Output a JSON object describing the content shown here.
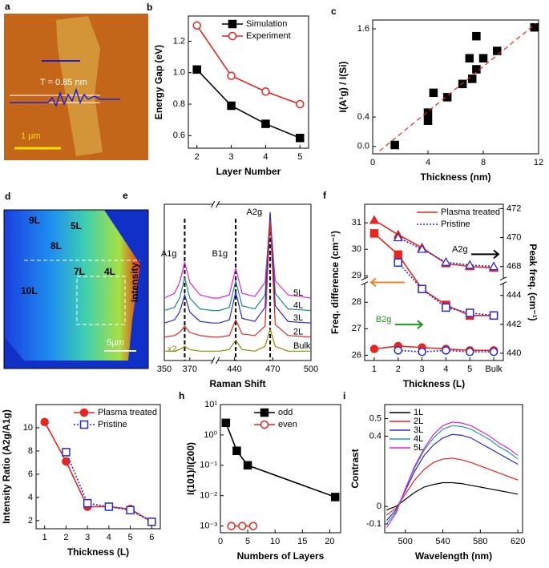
{
  "images": {
    "a": {
      "panel": "a",
      "labels": [
        "T = 0.85 nm",
        "1 μm"
      ]
    },
    "d": {
      "panel": "d",
      "labels": [
        "9L",
        "5L",
        "8L",
        "7L",
        "4L",
        "10L",
        "5μm"
      ]
    }
  },
  "chart_data": [
    {
      "panel": "b",
      "type": "line",
      "xlabel": "Layer Number",
      "ylabel": "Energy Gap (eV)",
      "xlim": [
        1.75,
        5.25
      ],
      "xticks": [
        2,
        3,
        4,
        5
      ],
      "ylim": [
        0.52,
        1.36
      ],
      "yticks": [
        0.6,
        0.8,
        {
          "value": 1,
          "label": "1.0"
        },
        1.2
      ],
      "legend": "upper right",
      "x": [
        2,
        3,
        4,
        5
      ],
      "series": [
        {
          "name": "Simulation",
          "color": "#000000",
          "marker": "square",
          "filled": true,
          "style": "solid",
          "values": [
            1.02,
            0.79,
            0.675,
            0.585
          ]
        },
        {
          "name": "Experiment",
          "color": "#e8251f",
          "marker": "circle",
          "filled": false,
          "style": "solid",
          "values": [
            1.3,
            0.98,
            0.88,
            0.8
          ]
        }
      ]
    },
    {
      "panel": "c",
      "type": "scatter",
      "xlabel": "Thickness (nm)",
      "ylabel": "I(A¹g) / I(Si)",
      "xlim": [
        0,
        12
      ],
      "xticks": [
        0,
        4,
        8,
        12
      ],
      "ylim": [
        -0.1,
        1.72
      ],
      "yticks": [
        {
          "value": 0,
          "label": "0.0"
        },
        0.4,
        1.6
      ],
      "series": [
        {
          "color": "#000000",
          "marker": "square",
          "filled": true,
          "style": "none",
          "x": [
            1.6,
            4,
            4,
            4.4,
            5.4,
            6.5,
            7,
            7.2,
            7.5,
            7.5,
            8,
            9,
            11.7
          ],
          "values": [
            0.02,
            0.35,
            0.46,
            0.73,
            0.67,
            0.85,
            1.2,
            0.92,
            1.5,
            1.05,
            1.2,
            1.3,
            1.62
          ]
        },
        {
          "color": "#e8251f",
          "marker": "none",
          "style": "dashed",
          "x": [
            0.5,
            11.8
          ],
          "values": [
            -0.06,
            1.67
          ]
        }
      ]
    },
    {
      "panel": "e",
      "type": "line",
      "xlabel": "Raman Shift",
      "ylabel": "Intensity",
      "xlim": [
        350,
        500
      ],
      "xbreak": [
        390,
        425
      ],
      "xticks": [
        350,
        370,
        440,
        470,
        500
      ],
      "ylim": [
        0,
        10
      ],
      "series_labels": "end",
      "x": [
        350,
        358,
        362,
        366,
        370,
        378,
        388,
        428,
        436,
        441,
        446,
        456,
        464,
        468,
        472,
        482,
        500
      ],
      "annotations": [
        {
          "x": 366,
          "label": "A1g"
        },
        {
          "x": 441,
          "label": "B1g"
        },
        {
          "x": 468,
          "label": "A2g"
        }
      ],
      "notes": [
        {
          "label": "x2",
          "color": "#8a8a00"
        }
      ],
      "series": [
        {
          "name": "5L",
          "color": "#e020e0",
          "marker": "none",
          "style": "solid",
          "values": [
            4.0,
            4.3,
            5.0,
            6.3,
            5.0,
            4.2,
            4.0,
            4.0,
            4.2,
            5.9,
            4.3,
            4.1,
            5.0,
            9.2,
            5.1,
            4.2,
            4.0
          ]
        },
        {
          "name": "4L",
          "color": "#1a8a7a",
          "marker": "none",
          "style": "solid",
          "values": [
            3.2,
            3.4,
            4.0,
            5.3,
            4.0,
            3.3,
            3.2,
            3.2,
            3.4,
            5.1,
            3.5,
            3.3,
            4.2,
            9.4,
            4.3,
            3.3,
            3.2
          ]
        },
        {
          "name": "3L",
          "color": "#2a2ac8",
          "marker": "none",
          "style": "solid",
          "values": [
            2.4,
            2.6,
            3.1,
            4.2,
            3.1,
            2.5,
            2.4,
            2.4,
            2.6,
            4.4,
            2.7,
            2.5,
            3.4,
            9.5,
            3.5,
            2.5,
            2.4
          ]
        },
        {
          "name": "2L",
          "color": "#e8251f",
          "marker": "none",
          "style": "solid",
          "values": [
            1.5,
            1.6,
            1.8,
            2.2,
            1.8,
            1.6,
            1.5,
            1.5,
            1.6,
            2.6,
            1.7,
            1.6,
            2.2,
            9.0,
            2.3,
            1.6,
            1.5
          ]
        },
        {
          "name": "Bulk",
          "color": "#8a8a00",
          "marker": "none",
          "style": "solid",
          "values": [
            0.6,
            0.6,
            0.7,
            0.9,
            0.7,
            0.6,
            0.6,
            0.6,
            0.7,
            1.3,
            0.7,
            0.6,
            0.9,
            2.0,
            0.9,
            0.6,
            0.6
          ]
        }
      ]
    },
    {
      "panel": "f",
      "type": "line",
      "xlabel": "Thickness (L)",
      "ylabel": "Freq. difference (cm⁻¹)",
      "y2label": "Peak freq. (cm⁻¹)",
      "xlim": [
        0.6,
        6.4
      ],
      "xticks": [
        1,
        2,
        3,
        4,
        5,
        {
          "value": 6,
          "label": "Bulk"
        }
      ],
      "ylim": [
        25.8,
        31.7
      ],
      "yticks": [
        26,
        27,
        28,
        29,
        30,
        31
      ],
      "y2lim": [
        439.5,
        472.3
      ],
      "y2break": [
        445,
        467
      ],
      "y2ticks": [
        440,
        442,
        444,
        468,
        470,
        472
      ],
      "legend": "upper right",
      "x": [
        1,
        2,
        3,
        4,
        5,
        6
      ],
      "annotations": [
        {
          "label": "A2g",
          "color": "#000000"
        },
        {
          "label": "B2g",
          "color": "#1a9a1a"
        }
      ],
      "series": [
        {
          "name": "Plasma treated",
          "color": "#e8251f",
          "marker": "triangle",
          "filled": true,
          "style": "solid",
          "axis": "y2",
          "values": [
            471.2,
            470.2,
            469.3,
            468.2,
            468.0,
            467.9
          ]
        },
        {
          "name": "Pristine",
          "color": "#2a2ac8",
          "marker": "triangle",
          "filled": false,
          "style": "dotted",
          "axis": "y2",
          "values": [
            null,
            470.0,
            469.2,
            468.3,
            468.1,
            468.0
          ]
        },
        {
          "color": "#e8251f",
          "marker": "square",
          "filled": true,
          "style": "solid",
          "values": [
            30.6,
            29.8,
            28.5,
            27.9,
            27.5,
            27.5
          ]
        },
        {
          "color": "#2a2ac8",
          "marker": "square",
          "filled": false,
          "style": "dotted",
          "values": [
            null,
            29.5,
            28.5,
            27.8,
            27.6,
            27.5
          ]
        },
        {
          "color": "#e8251f",
          "marker": "circle",
          "filled": true,
          "style": "solid",
          "axis": "y2",
          "values": [
            440.3,
            440.5,
            440.4,
            440.3,
            440.2,
            440.2
          ]
        },
        {
          "color": "#2a2ac8",
          "marker": "circle",
          "filled": false,
          "style": "dotted",
          "axis": "y2",
          "values": [
            null,
            440.2,
            440.1,
            440.2,
            440.1,
            440.1
          ]
        }
      ]
    },
    {
      "panel": "g",
      "type": "line",
      "xlabel": "Thickness (L)",
      "ylabel": "Intensity Ratio (A2g/A1g)",
      "xlim": [
        0.6,
        6.4
      ],
      "xticks": [
        1,
        2,
        3,
        4,
        5,
        6
      ],
      "ylim": [
        1.3,
        12
      ],
      "yticks": [
        2,
        4,
        6,
        8,
        10
      ],
      "legend": "upper right",
      "x": [
        1,
        2,
        3,
        4,
        5,
        6
      ],
      "series": [
        {
          "name": "Plasma treated",
          "color": "#e8251f",
          "marker": "circle",
          "filled": true,
          "style": "solid",
          "values": [
            10.5,
            7.1,
            3.2,
            3.2,
            3.0,
            1.9
          ]
        },
        {
          "name": "Pristine",
          "color": "#2a2ac8",
          "marker": "square",
          "filled": false,
          "style": "dotted",
          "values": [
            null,
            7.9,
            3.5,
            3.2,
            2.9,
            1.9
          ]
        }
      ]
    },
    {
      "panel": "h",
      "type": "line",
      "xlabel": "Numbers of Layers",
      "ylabel": "I(101)/I(200)",
      "xlim": [
        0,
        22
      ],
      "xticks": [
        0,
        5,
        10,
        15,
        20
      ],
      "ylim": [
        0.0006,
        10
      ],
      "yscale": "log",
      "yticks": [
        {
          "value": 0.001,
          "label": "10⁻³"
        },
        {
          "value": 0.01,
          "label": "10⁻²"
        },
        {
          "value": 0.1,
          "label": "10⁻¹"
        },
        {
          "value": 1,
          "label": "10⁰"
        },
        {
          "value": 10,
          "label": "10¹"
        }
      ],
      "legend": "upper right",
      "series": [
        {
          "name": "odd",
          "color": "#000000",
          "marker": "square",
          "filled": true,
          "style": "solid",
          "x": [
            1,
            3,
            5,
            21
          ],
          "values": [
            2.5,
            0.3,
            0.1,
            0.009
          ]
        },
        {
          "name": "even",
          "color": "#e8251f",
          "marker": "circle",
          "filled": false,
          "style": "solid",
          "x": [
            2,
            4,
            6
          ],
          "values": [
            0.001,
            0.001,
            0.001
          ]
        }
      ]
    },
    {
      "panel": "i",
      "type": "line",
      "xlabel": "Wavelength (nm)",
      "ylabel": "Contrast",
      "xlim": [
        478,
        625
      ],
      "xticks": [
        500,
        540,
        580,
        620
      ],
      "ylim": [
        -0.15,
        0.58
      ],
      "yticks": [
        -0.1,
        0,
        0.4,
        0.5
      ],
      "legend": "upper left",
      "x": [
        480,
        490,
        500,
        510,
        520,
        530,
        540,
        550,
        560,
        570,
        580,
        590,
        600,
        610,
        620
      ],
      "series": [
        {
          "name": "1L",
          "color": "#000000",
          "marker": "none",
          "style": "solid",
          "values": [
            -0.02,
            0.0,
            0.04,
            0.08,
            0.11,
            0.125,
            0.135,
            0.135,
            0.13,
            0.12,
            0.11,
            0.1,
            0.09,
            0.08,
            0.07
          ]
        },
        {
          "name": "2L",
          "color": "#e8251f",
          "marker": "none",
          "style": "solid",
          "values": [
            -0.05,
            -0.01,
            0.07,
            0.15,
            0.21,
            0.25,
            0.27,
            0.275,
            0.265,
            0.25,
            0.23,
            0.21,
            0.19,
            0.17,
            0.15
          ]
        },
        {
          "name": "3L",
          "color": "#2a2ac8",
          "marker": "none",
          "style": "solid",
          "values": [
            -0.08,
            -0.02,
            0.09,
            0.2,
            0.29,
            0.35,
            0.39,
            0.41,
            0.405,
            0.39,
            0.36,
            0.33,
            0.3,
            0.27,
            0.24
          ]
        },
        {
          "name": "4L",
          "color": "#1aa09a",
          "marker": "none",
          "style": "solid",
          "values": [
            -0.1,
            -0.03,
            0.1,
            0.22,
            0.32,
            0.39,
            0.44,
            0.46,
            0.455,
            0.44,
            0.41,
            0.38,
            0.34,
            0.31,
            0.27
          ]
        },
        {
          "name": "5L",
          "color": "#e020e0",
          "marker": "none",
          "style": "solid",
          "values": [
            -0.12,
            -0.04,
            0.1,
            0.23,
            0.33,
            0.41,
            0.46,
            0.48,
            0.475,
            0.46,
            0.43,
            0.4,
            0.36,
            0.33,
            0.29
          ]
        }
      ]
    }
  ]
}
